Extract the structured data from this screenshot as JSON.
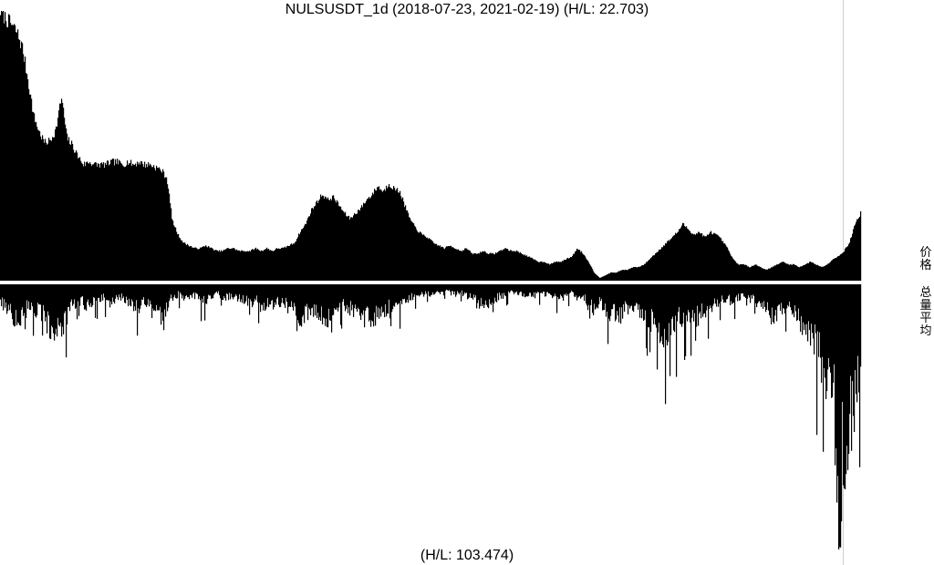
{
  "chart_data": {
    "type": "bar",
    "title": "NULSUSDT_1d (2018-07-23, 2021-02-19) (H/L: 22.703)",
    "x_start": "2018-07-23",
    "x_end": "2021-02-19",
    "panels": [
      {
        "name": "price",
        "side_label": "价格",
        "high_low_ratio": 22.703,
        "series": [
          {
            "values": [
              1.0,
              0.97,
              0.95,
              0.92,
              0.86,
              0.74,
              0.61,
              0.55,
              0.51,
              0.52,
              0.56,
              0.68,
              0.53,
              0.5,
              0.46,
              0.43,
              0.44,
              0.43,
              0.43,
              0.43,
              0.44,
              0.44,
              0.43,
              0.44,
              0.43,
              0.44,
              0.43,
              0.43,
              0.42,
              0.41,
              0.38,
              0.22,
              0.17,
              0.14,
              0.13,
              0.12,
              0.12,
              0.13,
              0.12,
              0.11,
              0.11,
              0.12,
              0.12,
              0.11,
              0.11,
              0.11,
              0.12,
              0.11,
              0.12,
              0.11,
              0.12,
              0.12,
              0.13,
              0.14,
              0.18,
              0.21,
              0.26,
              0.29,
              0.32,
              0.3,
              0.31,
              0.28,
              0.25,
              0.23,
              0.25,
              0.27,
              0.3,
              0.32,
              0.35,
              0.33,
              0.36,
              0.34,
              0.33,
              0.27,
              0.22,
              0.19,
              0.17,
              0.16,
              0.14,
              0.13,
              0.12,
              0.13,
              0.12,
              0.11,
              0.12,
              0.1,
              0.1,
              0.11,
              0.1,
              0.1,
              0.11,
              0.12,
              0.11,
              0.11,
              0.1,
              0.09,
              0.08,
              0.07,
              0.07,
              0.06,
              0.07,
              0.07,
              0.08,
              0.09,
              0.12,
              0.1,
              0.07,
              0.03,
              0.01,
              0.02,
              0.03,
              0.03,
              0.04,
              0.04,
              0.05,
              0.05,
              0.06,
              0.08,
              0.1,
              0.12,
              0.14,
              0.16,
              0.18,
              0.21,
              0.19,
              0.17,
              0.18,
              0.16,
              0.18,
              0.17,
              0.15,
              0.12,
              0.08,
              0.06,
              0.06,
              0.05,
              0.06,
              0.05,
              0.04,
              0.05,
              0.06,
              0.07,
              0.06,
              0.06,
              0.05,
              0.06,
              0.07,
              0.06,
              0.05,
              0.06,
              0.08,
              0.09,
              0.11,
              0.14,
              0.21,
              0.25
            ]
          }
        ]
      },
      {
        "name": "volume",
        "side_label": "总量平均",
        "high_low_ratio": 103.474,
        "series": [
          {
            "values": [
              0.08,
              0.09,
              0.12,
              0.15,
              0.13,
              0.1,
              0.09,
              0.12,
              0.14,
              0.18,
              0.16,
              0.2,
              0.14,
              0.09,
              0.08,
              0.07,
              0.1,
              0.07,
              0.06,
              0.05,
              0.09,
              0.06,
              0.05,
              0.07,
              0.08,
              0.1,
              0.09,
              0.07,
              0.12,
              0.11,
              0.15,
              0.06,
              0.05,
              0.04,
              0.06,
              0.05,
              0.05,
              0.08,
              0.06,
              0.05,
              0.04,
              0.06,
              0.05,
              0.05,
              0.06,
              0.07,
              0.08,
              0.06,
              0.1,
              0.09,
              0.1,
              0.08,
              0.07,
              0.1,
              0.12,
              0.14,
              0.13,
              0.1,
              0.11,
              0.13,
              0.15,
              0.12,
              0.09,
              0.08,
              0.1,
              0.11,
              0.12,
              0.14,
              0.15,
              0.13,
              0.12,
              0.1,
              0.09,
              0.08,
              0.07,
              0.06,
              0.05,
              0.04,
              0.04,
              0.04,
              0.03,
              0.04,
              0.03,
              0.03,
              0.04,
              0.04,
              0.05,
              0.06,
              0.08,
              0.1,
              0.07,
              0.06,
              0.05,
              0.04,
              0.03,
              0.04,
              0.04,
              0.05,
              0.05,
              0.04,
              0.05,
              0.05,
              0.06,
              0.06,
              0.05,
              0.04,
              0.06,
              0.05,
              0.09,
              0.1,
              0.08,
              0.11,
              0.13,
              0.12,
              0.14,
              0.1,
              0.09,
              0.13,
              0.12,
              0.15,
              0.17,
              0.2,
              0.21,
              0.19,
              0.16,
              0.14,
              0.13,
              0.12,
              0.14,
              0.12,
              0.11,
              0.09,
              0.07,
              0.06,
              0.07,
              0.06,
              0.05,
              0.07,
              0.06,
              0.08,
              0.1,
              0.12,
              0.14,
              0.12,
              0.1,
              0.11,
              0.14,
              0.16,
              0.18,
              0.21,
              0.26,
              0.33,
              0.46,
              0.41,
              1.0,
              0.72,
              0.62,
              0.52,
              0.7
            ]
          }
        ]
      }
    ],
    "footer": "(H/L: 103.474)",
    "grid": false,
    "legend": "none"
  }
}
